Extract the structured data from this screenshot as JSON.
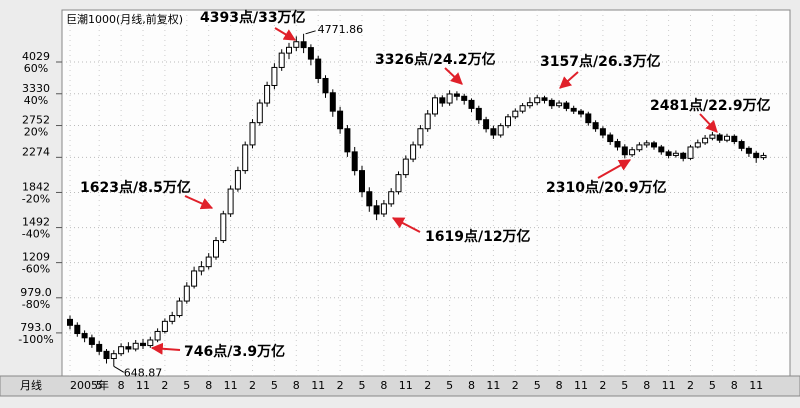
{
  "chart_data": {
    "type": "candlestick",
    "title": "巨潮1000(月线,前复权)",
    "period_label": "月线",
    "categories": [
      "2005年",
      null,
      null,
      null,
      "5",
      null,
      null,
      "8",
      null,
      null,
      "11",
      null,
      null,
      "2",
      null,
      null,
      "5",
      null,
      null,
      "8",
      null,
      null,
      "11",
      null,
      null,
      "2",
      null,
      null,
      "5",
      null,
      null,
      "8",
      null,
      null,
      "11",
      null,
      null,
      "2",
      null,
      null,
      "5",
      null,
      null,
      "8",
      null,
      null,
      "11",
      null,
      null,
      "2",
      null,
      null,
      "5",
      null,
      null,
      "8",
      null,
      null,
      "11",
      null,
      null,
      "2",
      null,
      null,
      "5",
      null,
      null,
      "8",
      null,
      null,
      "11",
      null,
      null,
      "2",
      null,
      null,
      "5",
      null,
      null,
      "8",
      null,
      null,
      "11",
      null,
      null,
      "2",
      null,
      null,
      "5",
      null,
      null,
      "8",
      null,
      null,
      "11",
      null
    ],
    "open": [
      860,
      830,
      790,
      770,
      740,
      710,
      680,
      700,
      730,
      720,
      745,
      735,
      760,
      800,
      850,
      880,
      960,
      1050,
      1150,
      1180,
      1250,
      1380,
      1620,
      1880,
      2100,
      2450,
      2800,
      3150,
      3500,
      3900,
      4250,
      4400,
      4550,
      4393,
      4100,
      3650,
      3350,
      3000,
      2700,
      2350,
      2100,
      1850,
      1700,
      1619,
      1720,
      1850,
      2050,
      2250,
      2450,
      2700,
      2950,
      3250,
      3150,
      3326,
      3280,
      3200,
      3050,
      2850,
      2700,
      2600,
      2750,
      2900,
      3000,
      3100,
      3157,
      3250,
      3200,
      3100,
      3150,
      3050,
      3000,
      2950,
      2800,
      2700,
      2600,
      2500,
      2420,
      2310,
      2380,
      2450,
      2480,
      2420,
      2350,
      2300,
      2330,
      2260,
      2420,
      2481,
      2550,
      2600,
      2520,
      2580,
      2500,
      2400,
      2330,
      2270
    ],
    "high": [
      880,
      845,
      805,
      785,
      755,
      720,
      715,
      745,
      750,
      760,
      765,
      775,
      815,
      865,
      900,
      980,
      1075,
      1180,
      1220,
      1280,
      1410,
      1650,
      1920,
      2150,
      2500,
      2860,
      3220,
      3580,
      4000,
      4350,
      4520,
      4700,
      4771.86,
      4480,
      4180,
      3720,
      3420,
      3080,
      2760,
      2420,
      2160,
      1900,
      1760,
      1760,
      1890,
      2090,
      2300,
      2500,
      2760,
      3020,
      3310,
      3300,
      3400,
      3380,
      3330,
      3240,
      3100,
      2900,
      2750,
      2790,
      2950,
      3050,
      3150,
      3260,
      3310,
      3290,
      3240,
      3200,
      3190,
      3100,
      3040,
      2990,
      2840,
      2740,
      2640,
      2540,
      2460,
      2420,
      2490,
      2520,
      2510,
      2450,
      2380,
      2370,
      2350,
      2450,
      2530,
      2600,
      2650,
      2630,
      2620,
      2610,
      2530,
      2430,
      2360,
      2340
    ],
    "low": [
      810,
      775,
      750,
      725,
      695,
      660,
      648.87,
      690,
      705,
      710,
      720,
      725,
      750,
      790,
      835,
      870,
      945,
      1035,
      1120,
      1160,
      1230,
      1360,
      1590,
      1850,
      2060,
      2400,
      2750,
      3080,
      3420,
      3820,
      4100,
      4300,
      4250,
      3950,
      3550,
      3250,
      2900,
      2620,
      2280,
      2040,
      1790,
      1640,
      1560,
      1590,
      1690,
      1820,
      2010,
      2210,
      2400,
      2650,
      2900,
      3080,
      3100,
      3200,
      3120,
      2980,
      2780,
      2640,
      2540,
      2560,
      2710,
      2860,
      2960,
      3050,
      3110,
      3140,
      3040,
      3060,
      3000,
      2950,
      2890,
      2750,
      2650,
      2550,
      2450,
      2370,
      2260,
      2280,
      2350,
      2410,
      2380,
      2310,
      2260,
      2270,
      2220,
      2240,
      2400,
      2450,
      2520,
      2480,
      2490,
      2460,
      2360,
      2280,
      2200,
      2240
    ],
    "close": [
      830,
      790,
      770,
      740,
      710,
      680,
      700,
      730,
      720,
      745,
      735,
      760,
      800,
      850,
      880,
      960,
      1050,
      1150,
      1180,
      1250,
      1380,
      1620,
      1880,
      2100,
      2450,
      2800,
      3150,
      3500,
      3900,
      4250,
      4400,
      4550,
      4393,
      4100,
      3650,
      3350,
      3000,
      2700,
      2350,
      2100,
      1850,
      1700,
      1619,
      1720,
      1850,
      2050,
      2250,
      2450,
      2700,
      2950,
      3250,
      3150,
      3326,
      3280,
      3200,
      3050,
      2850,
      2700,
      2600,
      2750,
      2900,
      3000,
      3100,
      3157,
      3250,
      3200,
      3100,
      3150,
      3050,
      3000,
      2950,
      2800,
      2700,
      2600,
      2500,
      2420,
      2310,
      2380,
      2450,
      2480,
      2420,
      2350,
      2300,
      2330,
      2260,
      2420,
      2481,
      2550,
      2600,
      2520,
      2580,
      2500,
      2400,
      2330,
      2270,
      2300
    ],
    "ylim": [
      616,
      5342
    ],
    "log_scale": true,
    "yticks": [
      4029,
      3330,
      2752,
      2274,
      1842,
      1492,
      1209,
      {
        "value": 979,
        "label": "979.0"
      },
      {
        "value": 793,
        "label": "793.0"
      }
    ],
    "ytick_percent_labels": [
      "60%",
      "40%",
      "20%",
      null,
      "-20%",
      "-40%",
      "-60%",
      "-80%",
      "-100%"
    ],
    "grid": true,
    "candle_color": "#000000",
    "annotation_color": "#e0202a",
    "annotations": [
      "4393点/33万亿",
      "3326点/24.2万亿",
      "3157点/26.3万亿",
      "2481点/22.9万亿",
      "1623点/8.5万亿",
      "2310点/20.9万亿",
      "1619点/12万亿",
      "746点/3.9万亿"
    ]
  }
}
